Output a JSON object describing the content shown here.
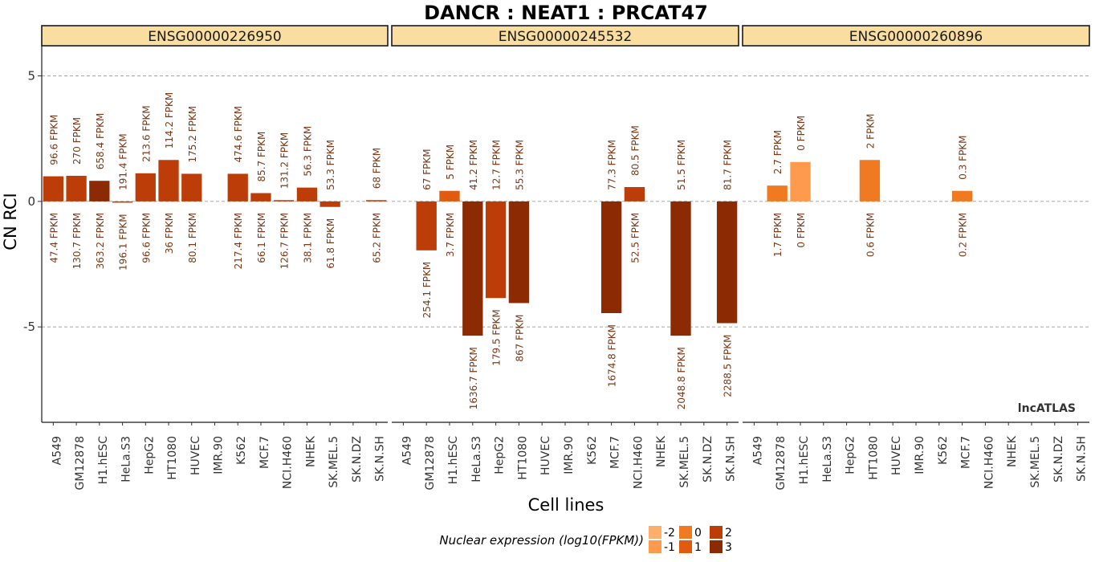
{
  "chart_data": {
    "type": "bar",
    "title": "DANCR : NEAT1 : PRCAT47",
    "xlabel": "Cell lines",
    "ylabel": "CN RCI",
    "ylim": [
      -8.8,
      6.2
    ],
    "y_ticks": [
      5,
      0,
      -5
    ],
    "y_tick_labels": [
      "5",
      "0",
      "-5"
    ],
    "grid": "dashed horizontal at y ticks",
    "categories": [
      "A549",
      "GM12878",
      "H1.hESC",
      "HeLa.S3",
      "HepG2",
      "HT1080",
      "HUVEC",
      "IMR.90",
      "K562",
      "MCF.7",
      "NCI.H460",
      "NHEK",
      "SK.MEL.5",
      "SK.N.DZ",
      "SK.N.SH"
    ],
    "panels": [
      {
        "name": "ENSG00000226950",
        "values": [
          1.0,
          1.02,
          0.82,
          -0.05,
          1.12,
          1.65,
          1.1,
          null,
          1.1,
          0.33,
          0.05,
          0.55,
          -0.22,
          null,
          0.05
        ],
        "nuclear_log10": [
          2,
          2,
          3,
          2,
          2,
          2,
          2,
          null,
          2,
          2,
          2,
          2,
          2,
          null,
          2
        ],
        "cytosolic_fpkm_labels": [
          "96.6 FPKM",
          "270 FPKM",
          "658.4 FPKM",
          "191.4 FPKM",
          "213.6 FPKM",
          "114.2 FPKM",
          "175.2 FPKM",
          "",
          "474.6 FPKM",
          "85.7 FPKM",
          "131.2 FPKM",
          "56.3 FPKM",
          "53.3 FPKM",
          "",
          "68 FPKM"
        ],
        "nuclear_fpkm_labels": [
          "47.4 FPKM",
          "130.7 FPKM",
          "363.2 FPKM",
          "196.1 FPKM",
          "96.6 FPKM",
          "36 FPKM",
          "80.1 FPKM",
          "",
          "217.4 FPKM",
          "66.1 FPKM",
          "126.7 FPKM",
          "38.1 FPKM",
          "61.8 FPKM",
          "",
          "65.2 FPKM"
        ]
      },
      {
        "name": "ENSG00000245532",
        "values": [
          null,
          -1.95,
          0.42,
          -5.35,
          -3.85,
          -4.05,
          null,
          null,
          null,
          -4.45,
          0.57,
          null,
          -5.35,
          null,
          -4.85
        ],
        "nuclear_log10": [
          null,
          2,
          1,
          3,
          2,
          3,
          null,
          null,
          null,
          3,
          2,
          null,
          3,
          null,
          3
        ],
        "cytosolic_fpkm_labels": [
          "",
          "67 FPKM",
          "5 FPKM",
          "41.2 FPKM",
          "12.7 FPKM",
          "55.3 FPKM",
          "",
          "",
          "",
          "77.3 FPKM",
          "80.5 FPKM",
          "",
          "51.5 FPKM",
          "",
          "81.7 FPKM"
        ],
        "nuclear_fpkm_labels": [
          "",
          "254.1 FPKM",
          "3.7 FPKM",
          "1636.7 FPKM",
          "179.5 FPKM",
          "867 FPKM",
          "",
          "",
          "",
          "1674.8 FPKM",
          "52.5 FPKM",
          "",
          "2048.8 FPKM",
          "",
          "2288.5 FPKM"
        ]
      },
      {
        "name": "ENSG00000260896",
        "values": [
          null,
          0.63,
          1.57,
          null,
          null,
          1.65,
          null,
          null,
          null,
          0.42,
          null,
          null,
          null,
          null,
          null
        ],
        "nuclear_log10": [
          null,
          0,
          -1,
          null,
          null,
          0,
          null,
          null,
          null,
          0,
          null,
          null,
          null,
          null,
          null
        ],
        "cytosolic_fpkm_labels": [
          "",
          "2.7 FPKM",
          "0 FPKM",
          "",
          "",
          "2 FPKM",
          "",
          "",
          "",
          "0.3 FPKM",
          "",
          "",
          "",
          "",
          ""
        ],
        "nuclear_fpkm_labels": [
          "",
          "1.7 FPKM",
          "0 FPKM",
          "",
          "",
          "0.6 FPKM",
          "",
          "",
          "",
          "0.2 FPKM",
          "",
          "",
          "",
          "",
          ""
        ]
      }
    ],
    "legend": {
      "title": "Nuclear expression (log10(FPKM))",
      "placement": "bottom",
      "items": [
        {
          "label": "-2",
          "value": -2,
          "color": "#fdae6b"
        },
        {
          "label": "-1",
          "value": -1,
          "color": "#fd9a4e"
        },
        {
          "label": "0",
          "value": 0,
          "color": "#f07a22"
        },
        {
          "label": "1",
          "value": 1,
          "color": "#e05a10"
        },
        {
          "label": "2",
          "value": 2,
          "color": "#bd3d08"
        },
        {
          "label": "3",
          "value": 3,
          "color": "#8c2a04"
        }
      ]
    },
    "watermark": "lncATLAS",
    "colors": {
      "strip_fill": "#f9dea0",
      "grid": "#9a9a9a"
    }
  }
}
